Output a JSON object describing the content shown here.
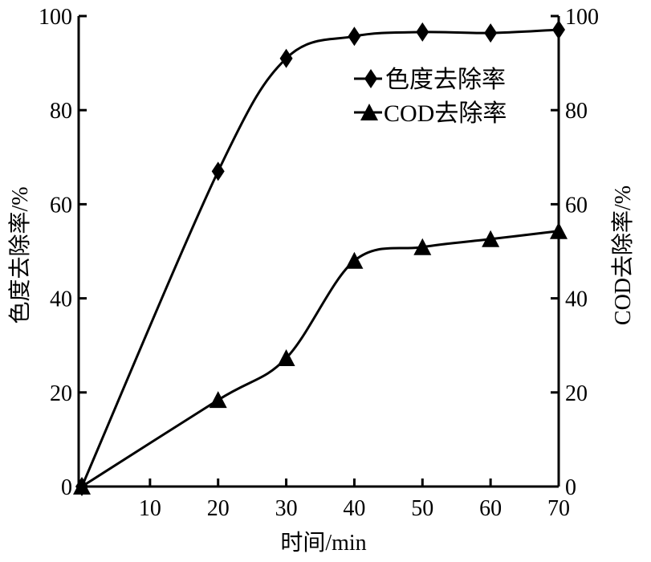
{
  "chart_data": {
    "type": "line",
    "title": "",
    "xlabel": "时间/min",
    "ylabel": "色度去除率/%",
    "y2label": "COD去除率/%",
    "xlim": [
      0,
      70
    ],
    "ylim": [
      0,
      100
    ],
    "y2lim": [
      0,
      100
    ],
    "xticks": [
      10,
      20,
      30,
      40,
      50,
      60,
      70
    ],
    "yticks": [
      0,
      20,
      40,
      60,
      80,
      100
    ],
    "grid": false,
    "legend_position": "top-right",
    "x": [
      0,
      20,
      30,
      40,
      50,
      60,
      70
    ],
    "series": [
      {
        "name": "色度去除率",
        "marker": "diamond",
        "axis": "left",
        "values": [
          0,
          67,
          91,
          95.7,
          96.6,
          96.4,
          97.1
        ]
      },
      {
        "name": "COD去除率",
        "marker": "triangle",
        "axis": "right",
        "values": [
          0,
          18.4,
          27.3,
          48,
          50.9,
          52.6,
          54.3
        ]
      }
    ]
  }
}
